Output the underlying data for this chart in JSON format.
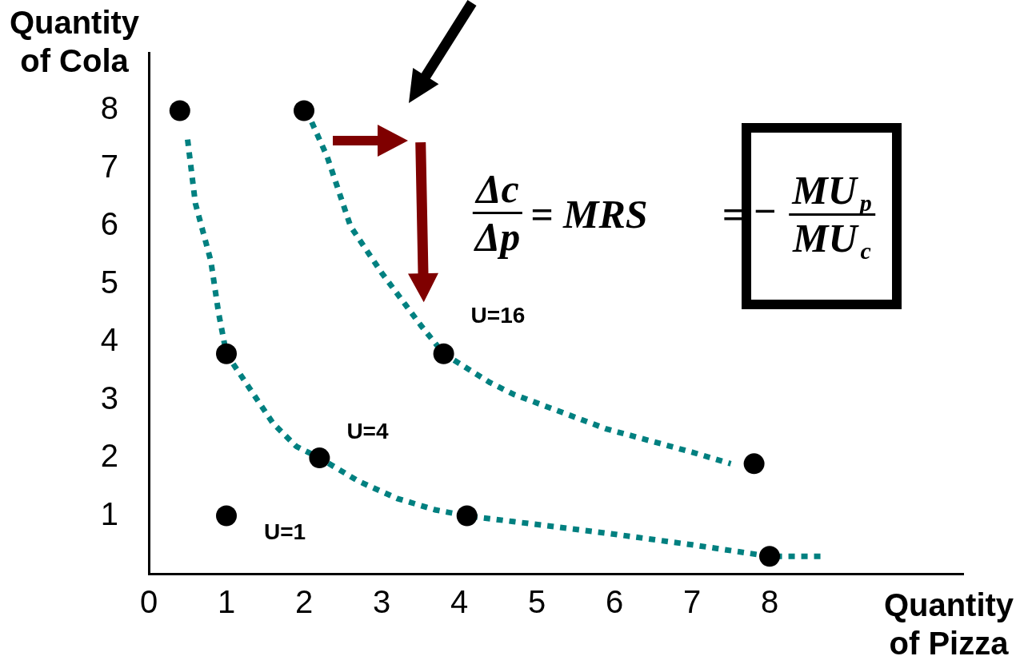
{
  "chart_data": {
    "type": "scatter",
    "xlabel": "Quantity of Pizza",
    "ylabel": "Quantity of Cola",
    "xlim": [
      0,
      10.5
    ],
    "ylim": [
      0,
      9
    ],
    "xticks": [
      0,
      1,
      2,
      3,
      4,
      5,
      6,
      7,
      8
    ],
    "yticks": [
      1,
      2,
      3,
      4,
      5,
      6,
      7,
      8
    ],
    "annotations": [
      "Δc",
      "Δp",
      "= MRS",
      "=",
      "−",
      "MU$_{p}$",
      "MU$_{c}$"
    ],
    "series": [
      {
        "type": "line",
        "color": "#008080",
        "line_style": "dotted",
        "marker": "none",
        "x": [
          0.5,
          0.6,
          0.8,
          0.9,
          1.0,
          1.3,
          1.6,
          1.9,
          2.2,
          2.7,
          3.2,
          3.7,
          4.1,
          4.7,
          5.9,
          7.0,
          8.0,
          8.7
        ],
        "values": [
          7.5,
          6.4,
          5.4,
          4.5,
          3.8,
          3.2,
          2.6,
          2.2,
          2.0,
          1.6,
          1.3,
          1.1,
          1.0,
          0.9,
          0.7,
          0.5,
          0.3,
          0.3
        ]
      },
      {
        "type": "line",
        "color": "#008080",
        "line_style": "dotted",
        "marker": "none",
        "x": [
          2.1,
          2.3,
          2.6,
          3.0,
          3.5,
          3.8,
          4.4,
          4.7,
          5.9,
          7.0,
          7.5
        ],
        "values": [
          7.8,
          7.2,
          6.0,
          5.2,
          4.3,
          3.8,
          3.3,
          3.1,
          2.5,
          2.1,
          1.9
        ]
      },
      {
        "name": "U=1",
        "type": "scatter",
        "color": "#000000",
        "marker": "circle",
        "x": [
          1.0
        ],
        "values": [
          1.0
        ]
      },
      {
        "name": "U=4",
        "type": "scatter",
        "color": "#000000",
        "marker": "circle",
        "x": [
          0.4,
          1.0,
          2.2,
          4.1,
          8.0
        ],
        "values": [
          8.0,
          3.8,
          2.0,
          1.0,
          0.3
        ]
      },
      {
        "name": "U=16",
        "type": "scatter",
        "color": "#000000",
        "marker": "circle",
        "x": [
          2.0,
          3.8,
          7.8
        ],
        "values": [
          8.0,
          3.8,
          1.9
        ]
      }
    ]
  }
}
